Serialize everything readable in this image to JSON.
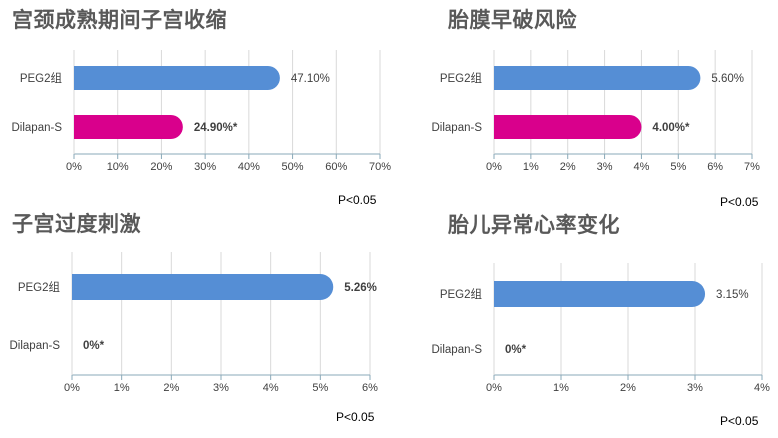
{
  "colors": {
    "peg2": "#558ED5",
    "dilapan": "#D9008C",
    "grid": "#D9D9D9",
    "axis": "#8AA9B8",
    "text": "#404040",
    "title": "#595959"
  },
  "chart_data": [
    {
      "type": "bar",
      "orientation": "horizontal",
      "title": "宫颈成熟期间子宫收缩",
      "categories": [
        "PEG2组",
        "Dilapan-S"
      ],
      "values": [
        47.1,
        24.9
      ],
      "value_labels": [
        "47.10%",
        "24.90%*"
      ],
      "xlim": [
        0,
        70
      ],
      "xticks": [
        "0%",
        "10%",
        "20%",
        "30%",
        "40%",
        "50%",
        "60%",
        "70%"
      ],
      "grid": true,
      "p_value": "P<0.05"
    },
    {
      "type": "bar",
      "orientation": "horizontal",
      "title": "胎膜早破风险",
      "categories": [
        "PEG2组",
        "Dilapan-S"
      ],
      "values": [
        5.6,
        4.0
      ],
      "value_labels": [
        "5.60%",
        "4.00%*"
      ],
      "xlim": [
        0,
        7
      ],
      "xticks": [
        "0%",
        "1%",
        "2%",
        "3%",
        "4%",
        "5%",
        "6%",
        "7%"
      ],
      "grid": true,
      "p_value": "P<0.05"
    },
    {
      "type": "bar",
      "orientation": "horizontal",
      "title": "子宫过度刺激",
      "categories": [
        "PEG2组",
        "Dilapan-S"
      ],
      "values": [
        5.26,
        0
      ],
      "value_labels": [
        "5.26%",
        "0%*"
      ],
      "xlim": [
        0,
        6
      ],
      "xticks": [
        "0%",
        "1%",
        "2%",
        "3%",
        "4%",
        "5%",
        "6%"
      ],
      "grid": true,
      "p_value": "P<0.05"
    },
    {
      "type": "bar",
      "orientation": "horizontal",
      "title": "胎儿异常心率变化",
      "categories": [
        "PEG2组",
        "Dilapan-S"
      ],
      "values": [
        3.15,
        0
      ],
      "value_labels": [
        "3.15%",
        "0%*"
      ],
      "xlim": [
        0,
        4
      ],
      "xticks": [
        "0%",
        "1%",
        "2%",
        "3%",
        "4%"
      ],
      "grid": true,
      "p_value": "P<0.05"
    }
  ]
}
